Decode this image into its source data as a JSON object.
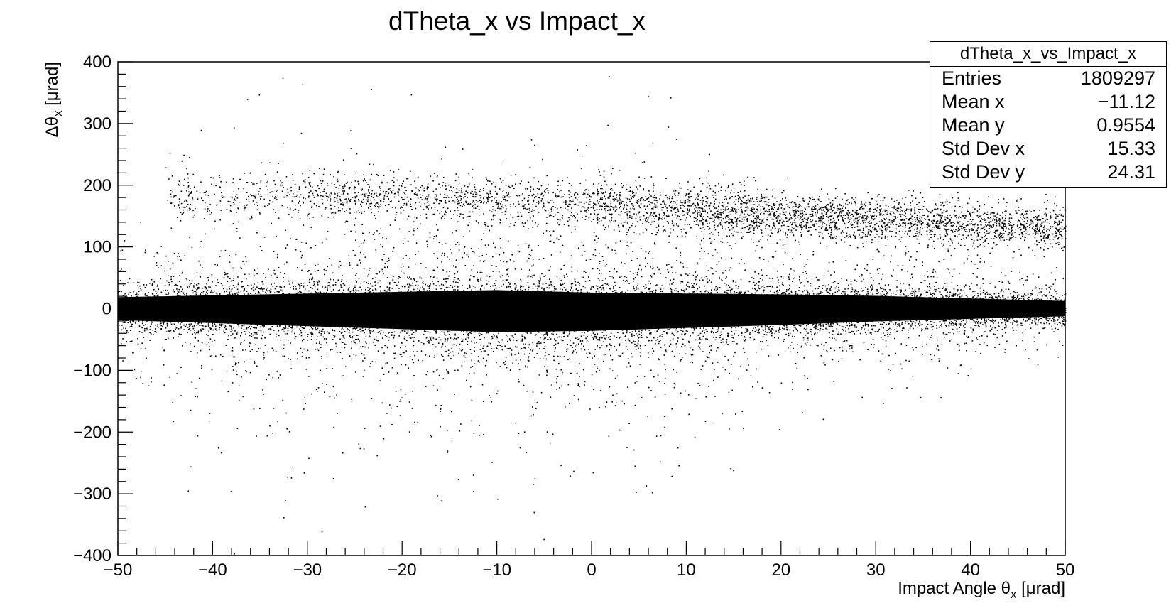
{
  "chart_data": {
    "type": "scatter",
    "title": "dTheta_x vs Impact_x",
    "xlabel": "Impact Angle θ",
    "xlabel_sub": "x",
    "xlabel_unit": " [μrad]",
    "ylabel": "Δθ",
    "ylabel_sub": "x",
    "ylabel_unit": " [μrad]",
    "xlim": [
      -50,
      50
    ],
    "ylim": [
      -400,
      400
    ],
    "x_ticks": [
      -50,
      -40,
      -30,
      -20,
      -10,
      0,
      10,
      20,
      30,
      40,
      50
    ],
    "x_tick_labels": [
      "−50",
      "−40",
      "−30",
      "−20",
      "−10",
      "0",
      "10",
      "20",
      "30",
      "40",
      "50"
    ],
    "y_ticks": [
      -400,
      -300,
      -200,
      -100,
      0,
      100,
      200,
      300,
      400
    ],
    "y_tick_labels": [
      "−400",
      "−300",
      "−200",
      "−100",
      "0",
      "100",
      "200",
      "300",
      "400"
    ],
    "grid": false,
    "marker_color": "#000000",
    "series": [
      {
        "kind": "main-band",
        "center_y": [
          [
            -50,
            0
          ],
          [
            0,
            -5
          ],
          [
            30,
            0
          ],
          [
            50,
            0
          ]
        ],
        "half_width_y": [
          [
            -50,
            30
          ],
          [
            -10,
            55
          ],
          [
            20,
            40
          ],
          [
            35,
            30
          ],
          [
            50,
            20
          ]
        ]
      },
      {
        "kind": "upper-band",
        "center_y": [
          [
            -30,
            185
          ],
          [
            0,
            170
          ],
          [
            20,
            152
          ],
          [
            50,
            130
          ]
        ],
        "half_width_y": [
          [
            -30,
            20
          ],
          [
            50,
            18
          ]
        ]
      }
    ],
    "stats": {
      "title": "dTheta_x_vs_Impact_x",
      "rows": [
        {
          "label": "Entries",
          "value": "1809297"
        },
        {
          "label": "Mean x",
          "value": "−11.12"
        },
        {
          "label": "Mean y",
          "value": "0.9554"
        },
        {
          "label": "Std Dev x",
          "value": "15.33"
        },
        {
          "label": "Std Dev y",
          "value": "24.31"
        }
      ]
    }
  }
}
